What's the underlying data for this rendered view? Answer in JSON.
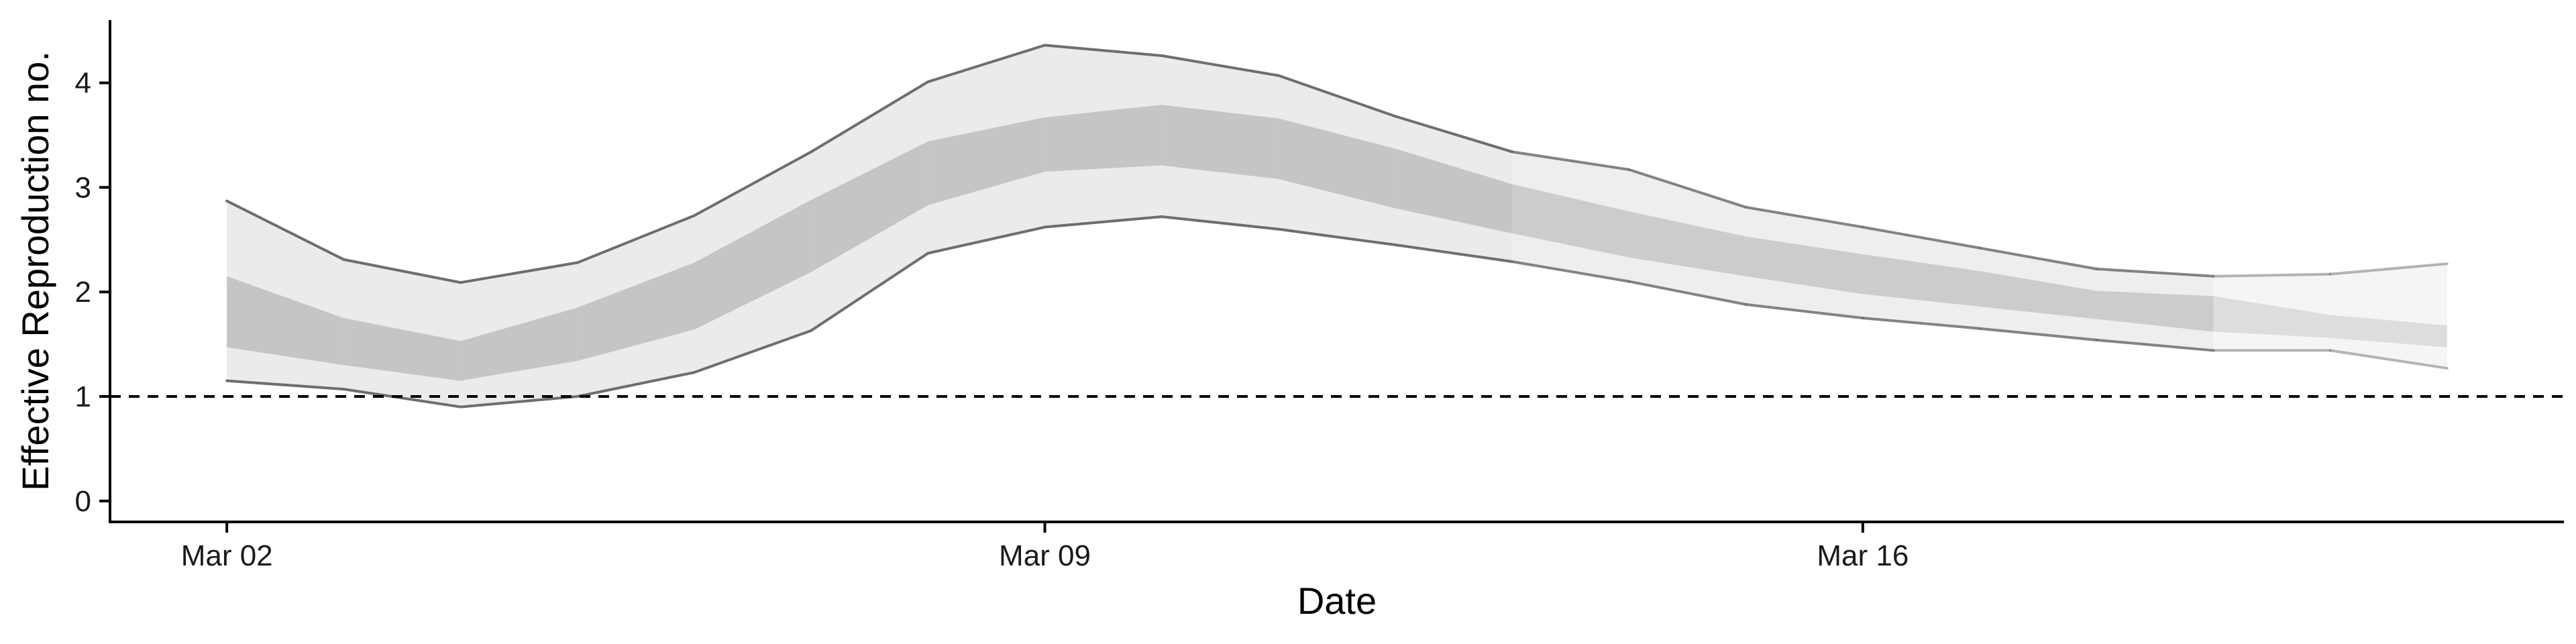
{
  "chart_data": {
    "type": "area",
    "title": "",
    "xlabel": "Date",
    "ylabel": "Effective Reproduction no.",
    "x_start": "Mar 01",
    "x_end": "Mar 22",
    "x_ticks": [
      "Mar 02",
      "Mar 09",
      "Mar 16"
    ],
    "ylim": [
      -0.2,
      4.6
    ],
    "y_ticks": [
      0,
      1,
      2,
      3,
      4
    ],
    "grid": false,
    "reference_line": {
      "y": 1,
      "style": "dashed"
    },
    "dates": [
      "Mar 02",
      "Mar 03",
      "Mar 04",
      "Mar 05",
      "Mar 06",
      "Mar 07",
      "Mar 08",
      "Mar 09",
      "Mar 10",
      "Mar 11",
      "Mar 12",
      "Mar 13",
      "Mar 14",
      "Mar 15",
      "Mar 16",
      "Mar 17",
      "Mar 18",
      "Mar 19",
      "Mar 20",
      "Mar 21"
    ],
    "bands": {
      "outer_lower": [
        1.15,
        1.07,
        0.9,
        1.0,
        1.23,
        1.63,
        2.37,
        2.62,
        2.72,
        2.6,
        2.45,
        2.29,
        2.1,
        1.88,
        1.75,
        1.65,
        1.54,
        1.44,
        1.44,
        1.27
      ],
      "outer_upper": [
        2.87,
        2.31,
        2.09,
        2.28,
        2.73,
        3.34,
        4.01,
        4.36,
        4.26,
        4.07,
        3.68,
        3.34,
        3.17,
        2.81,
        2.62,
        2.42,
        2.22,
        2.15,
        2.17,
        2.27
      ],
      "inner_lower": [
        1.47,
        1.3,
        1.15,
        1.34,
        1.64,
        2.19,
        2.83,
        3.15,
        3.21,
        3.08,
        2.8,
        2.56,
        2.33,
        2.15,
        1.98,
        1.86,
        1.74,
        1.62,
        1.56,
        1.47
      ],
      "inner_upper": [
        2.15,
        1.75,
        1.53,
        1.85,
        2.28,
        2.88,
        3.44,
        3.67,
        3.79,
        3.66,
        3.37,
        3.03,
        2.77,
        2.53,
        2.36,
        2.2,
        2.01,
        1.96,
        1.78,
        1.68
      ]
    },
    "shading": {
      "outer_fill": "#ebebeb",
      "inner_fill": "#c5c5c5",
      "edge_line": "#6e6e6e",
      "estimate_type_opacity": [
        1,
        1,
        1,
        1,
        1,
        1,
        1,
        1,
        1,
        1,
        1,
        1,
        0.85,
        0.85,
        0.85,
        0.85,
        0.85,
        0.85,
        0.5,
        0.5
      ]
    }
  }
}
